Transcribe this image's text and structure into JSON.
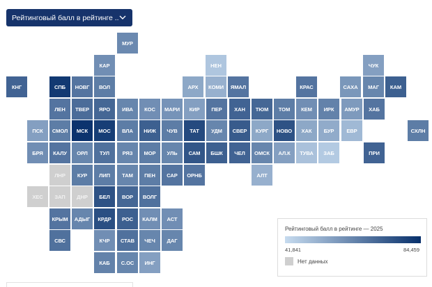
{
  "filter": {
    "selected": "Рейтинговый балл в рейтинге ..."
  },
  "colors": {
    "scale_min": "#c6dbef",
    "scale_max": "#08306b",
    "no_data": "#cfcfcf"
  },
  "legend": {
    "title": "Рейтинговый балл в рейтинге — 2025",
    "min_label": "41,841",
    "max_label": "84,459",
    "no_data_label": "Нет данных"
  },
  "regions": [
    {
      "code": "МУР",
      "col": 7,
      "row": 1,
      "level": 0.48
    },
    {
      "code": "НЕН",
      "col": 16,
      "row": 2,
      "level": 0.12
    },
    {
      "code": "ЧУК",
      "col": 28,
      "row": 2,
      "level": 0.35
    },
    {
      "code": "КАР",
      "col": 6,
      "row": 2,
      "level": 0.45
    },
    {
      "code": "КНГ",
      "col": 0,
      "row": 3,
      "level": 0.7
    },
    {
      "code": "СПБ",
      "col": 4,
      "row": 3,
      "level": 0.95
    },
    {
      "code": "НОВГ",
      "col": 5,
      "row": 3,
      "level": 0.6
    },
    {
      "code": "ВОЛ",
      "col": 6,
      "row": 3,
      "level": 0.55
    },
    {
      "code": "АРХ",
      "col": 14,
      "row": 3,
      "level": 0.3
    },
    {
      "code": "КОМИ",
      "col": 15,
      "row": 3,
      "level": 0.25
    },
    {
      "code": "ЯМАЛ",
      "col": 16,
      "row": 3,
      "level": 0.6
    },
    {
      "code": "КРАС",
      "col": 21,
      "row": 3,
      "level": 0.6
    },
    {
      "code": "САХА",
      "col": 24,
      "row": 3,
      "level": 0.4
    },
    {
      "code": "МАГ",
      "col": 25,
      "row": 3,
      "level": 0.5
    },
    {
      "code": "КАМ",
      "col": 26,
      "row": 3,
      "level": 0.72
    },
    {
      "code": "ЛЕН",
      "col": 4,
      "row": 4,
      "level": 0.6
    },
    {
      "code": "ТВЕР",
      "col": 5,
      "row": 4,
      "level": 0.65
    },
    {
      "code": "ЯРО",
      "col": 6,
      "row": 4,
      "level": 0.68
    },
    {
      "code": "ИВА",
      "col": 7,
      "row": 4,
      "level": 0.5
    },
    {
      "code": "КОС",
      "col": 8,
      "row": 4,
      "level": 0.45
    },
    {
      "code": "МАРИ",
      "col": 9,
      "row": 4,
      "level": 0.42
    },
    {
      "code": "КИР",
      "col": 10,
      "row": 4,
      "level": 0.35
    },
    {
      "code": "ПЕР",
      "col": 11,
      "row": 4,
      "level": 0.6
    },
    {
      "code": "ХАН",
      "col": 12,
      "row": 4,
      "level": 0.7
    },
    {
      "code": "ТЮМ",
      "col": 13,
      "row": 4,
      "level": 0.68
    },
    {
      "code": "ТОМ",
      "col": 14,
      "row": 4,
      "level": 0.55
    },
    {
      "code": "КЕМ",
      "col": 15,
      "row": 4,
      "level": 0.45
    },
    {
      "code": "ИРК",
      "col": 16,
      "row": 4,
      "level": 0.52
    },
    {
      "code": "АМУР",
      "col": 17,
      "row": 4,
      "level": 0.38
    },
    {
      "code": "ХАБ",
      "col": 18,
      "row": 4,
      "level": 0.6
    },
    {
      "code": "ПСК",
      "col": 3,
      "row": 5,
      "level": 0.35
    },
    {
      "code": "СМОЛ",
      "col": 4,
      "row": 5,
      "level": 0.55
    },
    {
      "code": "МСК",
      "col": 5,
      "row": 5,
      "level": 0.98
    },
    {
      "code": "МОС",
      "col": 6,
      "row": 5,
      "level": 0.92
    },
    {
      "code": "ВЛА",
      "col": 7,
      "row": 5,
      "level": 0.55
    },
    {
      "code": "НИЖ",
      "col": 8,
      "row": 5,
      "level": 0.72
    },
    {
      "code": "ЧУВ",
      "col": 9,
      "row": 5,
      "level": 0.55
    },
    {
      "code": "ТАТ",
      "col": 10,
      "row": 5,
      "level": 0.85
    },
    {
      "code": "УДМ",
      "col": 11,
      "row": 5,
      "level": 0.5
    },
    {
      "code": "СВЕР",
      "col": 12,
      "row": 5,
      "level": 0.75
    },
    {
      "code": "КУРГ",
      "col": 13,
      "row": 5,
      "level": 0.3
    },
    {
      "code": "НОВО",
      "col": 14,
      "row": 5,
      "level": 0.8
    },
    {
      "code": "ХАК",
      "col": 15,
      "row": 5,
      "level": 0.3
    },
    {
      "code": "БУР",
      "col": 16,
      "row": 5,
      "level": 0.28
    },
    {
      "code": "ЕВР",
      "col": 17,
      "row": 5,
      "level": 0.2
    },
    {
      "code": "СХЛН",
      "col": 19,
      "row": 5,
      "level": 0.55
    },
    {
      "code": "БРЯ",
      "col": 3,
      "row": 6,
      "level": 0.45
    },
    {
      "code": "КАЛУ",
      "col": 4,
      "row": 6,
      "level": 0.6
    },
    {
      "code": "ОРЛ",
      "col": 5,
      "row": 6,
      "level": 0.5
    },
    {
      "code": "ТУЛ",
      "col": 6,
      "row": 6,
      "level": 0.62
    },
    {
      "code": "РЯЗ",
      "col": 7,
      "row": 6,
      "level": 0.5
    },
    {
      "code": "МОР",
      "col": 8,
      "row": 6,
      "level": 0.55
    },
    {
      "code": "УЛЬ",
      "col": 9,
      "row": 6,
      "level": 0.5
    },
    {
      "code": "САМ",
      "col": 10,
      "row": 6,
      "level": 0.78
    },
    {
      "code": "БШК",
      "col": 11,
      "row": 6,
      "level": 0.72
    },
    {
      "code": "ЧЕЛ",
      "col": 12,
      "row": 6,
      "level": 0.7
    },
    {
      "code": "ОМСК",
      "col": 13,
      "row": 6,
      "level": 0.5
    },
    {
      "code": "АЛ.К",
      "col": 14,
      "row": 6,
      "level": 0.35
    },
    {
      "code": "ТУВА",
      "col": 15,
      "row": 6,
      "level": 0.15
    },
    {
      "code": "ЗАБ",
      "col": 16,
      "row": 6,
      "level": 0.1
    },
    {
      "code": "ПРИ",
      "col": 18,
      "row": 6,
      "level": 0.7
    },
    {
      "code": "ЛНР",
      "col": 4,
      "row": 7,
      "level": -1
    },
    {
      "code": "КУР",
      "col": 5,
      "row": 7,
      "level": 0.55
    },
    {
      "code": "ЛИП",
      "col": 6,
      "row": 7,
      "level": 0.55
    },
    {
      "code": "ТАМ",
      "col": 7,
      "row": 7,
      "level": 0.5
    },
    {
      "code": "ПЕН",
      "col": 8,
      "row": 7,
      "level": 0.55
    },
    {
      "code": "САР",
      "col": 9,
      "row": 7,
      "level": 0.6
    },
    {
      "code": "ОРНБ",
      "col": 10,
      "row": 7,
      "level": 0.6
    },
    {
      "code": "АЛТ",
      "col": 13,
      "row": 7,
      "level": 0.25
    },
    {
      "code": "ХЕС",
      "col": 3,
      "row": 8,
      "level": -1
    },
    {
      "code": "ЗАП",
      "col": 4,
      "row": 8,
      "level": -1
    },
    {
      "code": "ДНР",
      "col": 5,
      "row": 8,
      "level": -1
    },
    {
      "code": "БЕЛ",
      "col": 6,
      "row": 8,
      "level": 0.8
    },
    {
      "code": "ВОР",
      "col": 7,
      "row": 8,
      "level": 0.68
    },
    {
      "code": "ВОЛГ",
      "col": 8,
      "row": 8,
      "level": 0.62
    },
    {
      "code": "КРЫМ",
      "col": 4,
      "row": 9,
      "level": 0.6
    },
    {
      "code": "АДЫГ",
      "col": 5,
      "row": 9,
      "level": 0.5
    },
    {
      "code": "КРДР",
      "col": 6,
      "row": 9,
      "level": 0.82
    },
    {
      "code": "РОС",
      "col": 7,
      "row": 9,
      "level": 0.72
    },
    {
      "code": "КАЛМ",
      "col": 8,
      "row": 9,
      "level": 0.45
    },
    {
      "code": "АСТ",
      "col": 9,
      "row": 9,
      "level": 0.45
    },
    {
      "code": "СВС",
      "col": 4,
      "row": 10,
      "level": 0.62
    },
    {
      "code": "КЧР",
      "col": 6,
      "row": 10,
      "level": 0.45
    },
    {
      "code": "СТАВ",
      "col": 7,
      "row": 10,
      "level": 0.62
    },
    {
      "code": "ЧЕЧ",
      "col": 8,
      "row": 10,
      "level": 0.5
    },
    {
      "code": "ДАГ",
      "col": 9,
      "row": 10,
      "level": 0.5
    },
    {
      "code": "КАБ",
      "col": 6,
      "row": 11,
      "level": 0.52
    },
    {
      "code": "С.ОС",
      "col": 7,
      "row": 11,
      "level": 0.5
    },
    {
      "code": "ИНГ",
      "col": 8,
      "row": 11,
      "level": 0.35
    }
  ]
}
